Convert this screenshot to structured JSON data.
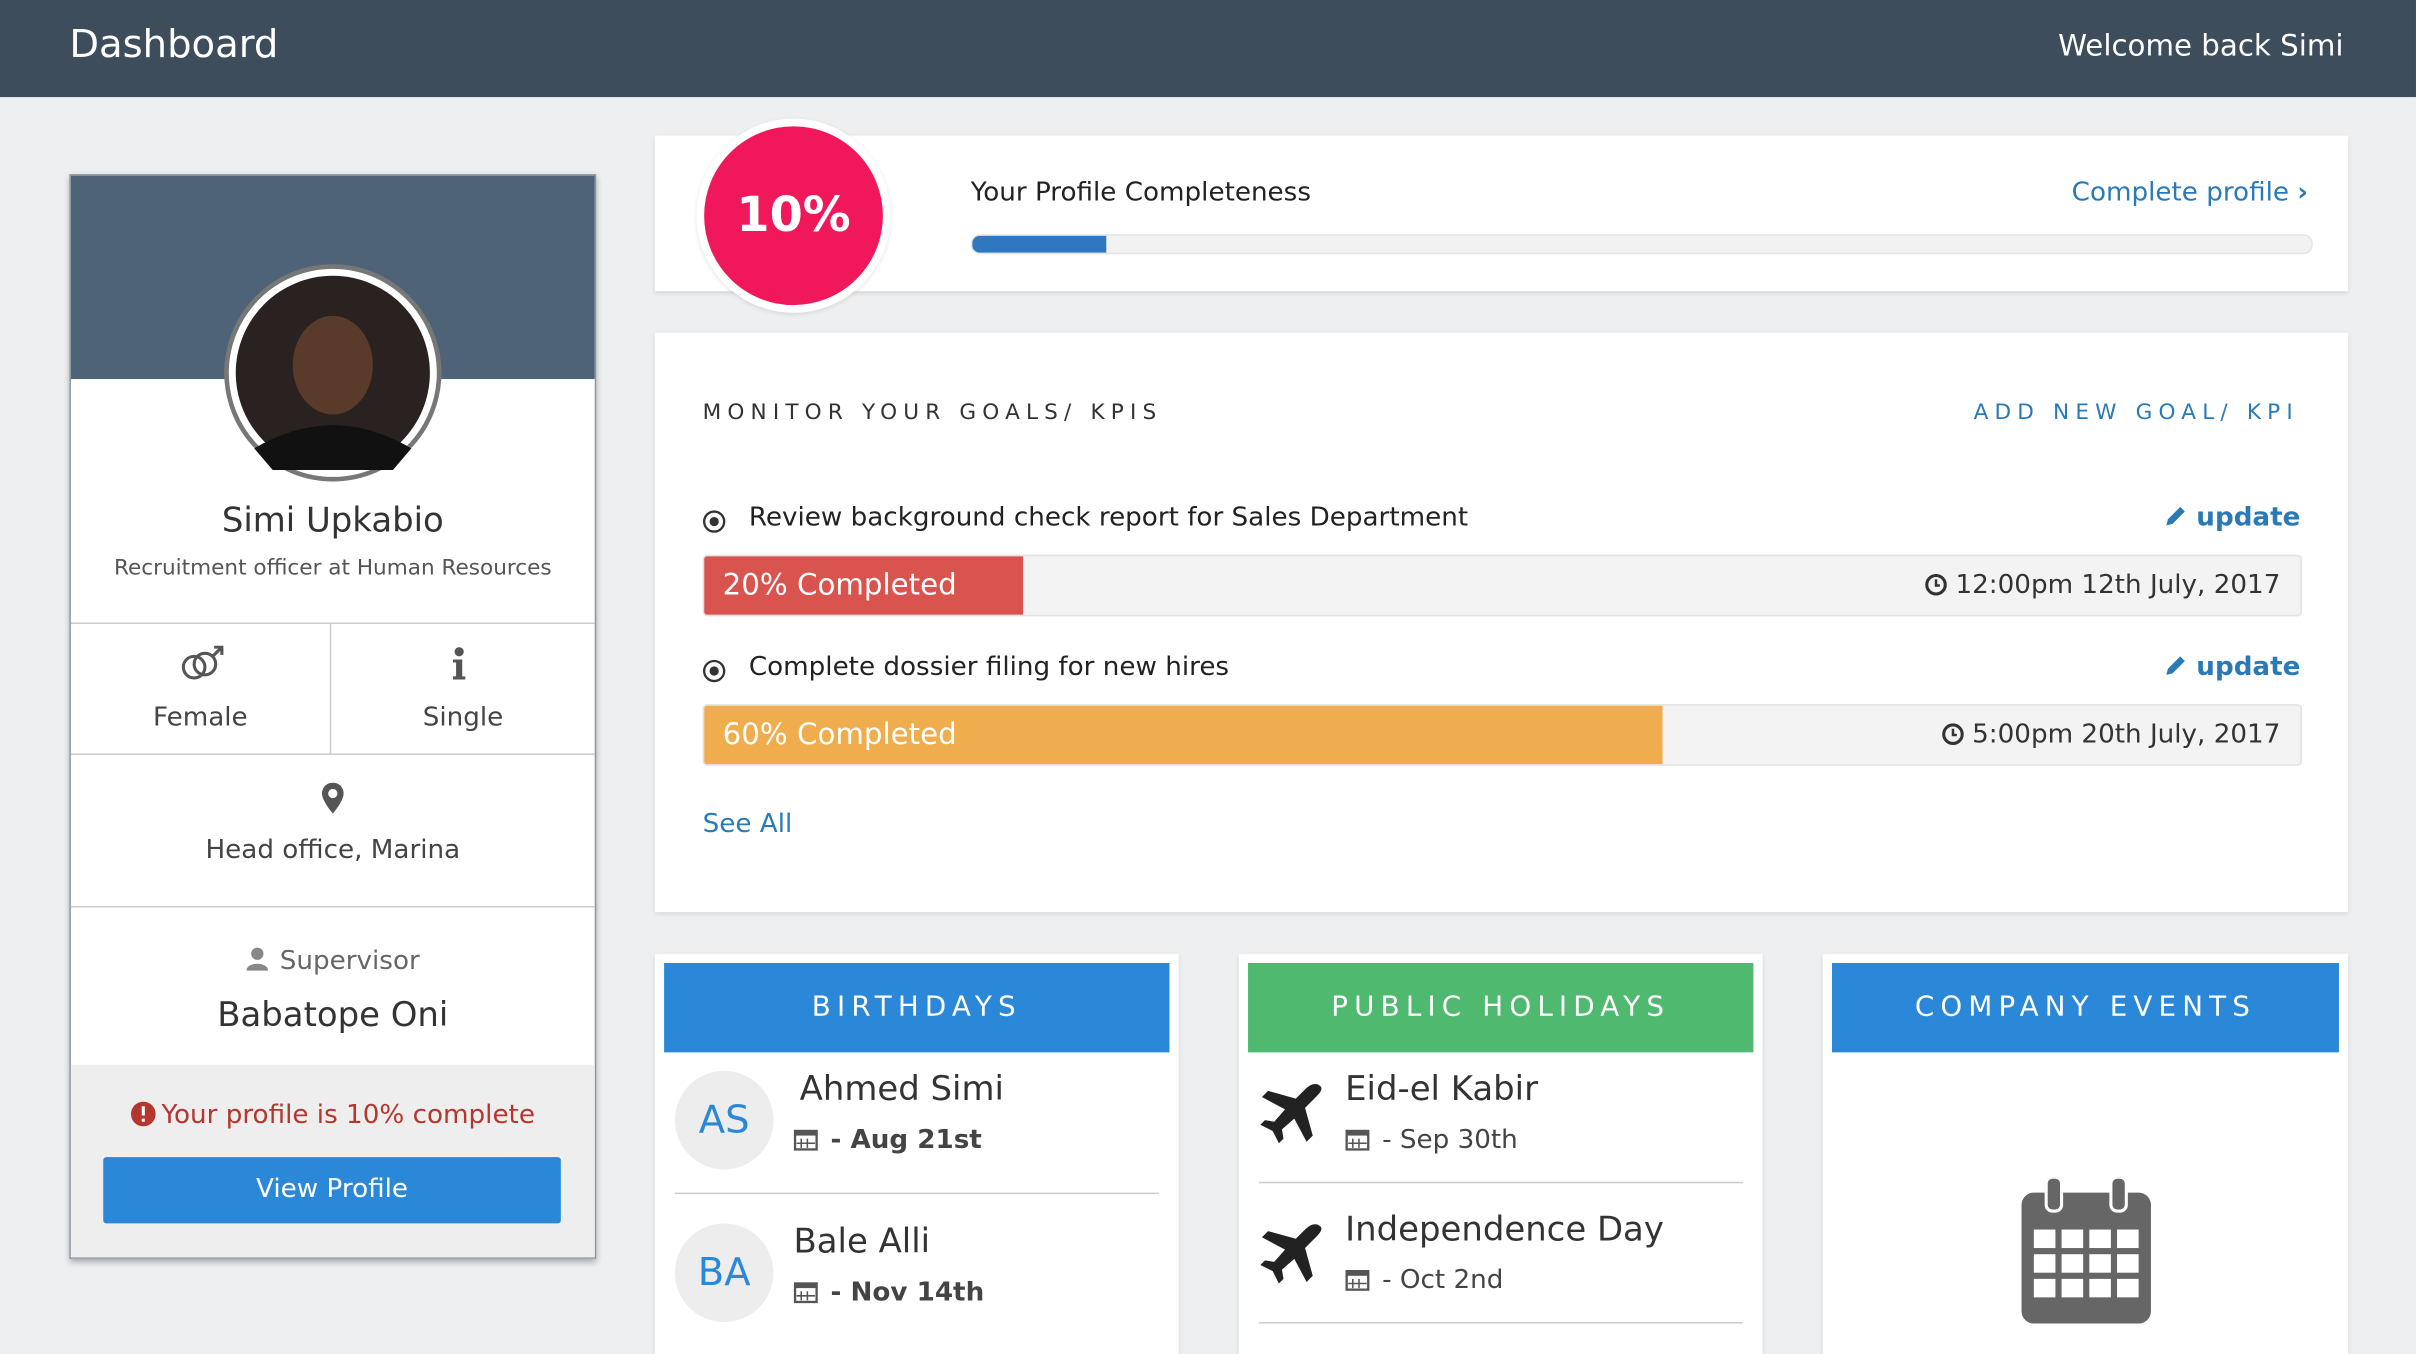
{
  "header": {
    "title": "Dashboard",
    "welcome": "Welcome back Simi"
  },
  "profile": {
    "name": "Simi Upkabio",
    "role": "Recruitment officer at Human Resources",
    "gender": "Female",
    "status": "Single",
    "location": "Head office, Marina",
    "supervisor_label": "Supervisor",
    "supervisor": "Babatope Oni",
    "note": "Your profile is 10% complete",
    "button": "View Profile"
  },
  "completeness": {
    "percent": 10,
    "percent_label": "10%",
    "title": "Your Profile Completeness",
    "link": "Complete profile"
  },
  "goals": {
    "title": "MONITOR YOUR GOALS/ KPIS",
    "add_link": "ADD NEW GOAL/ KPI",
    "items": [
      {
        "title": "Review background check report for Sales Department",
        "update": "update",
        "progress": 20,
        "progress_label": "20% Completed",
        "deadline": "12:00pm 12th July, 2017"
      },
      {
        "title": "Complete dossier filing for new hires",
        "update": "update",
        "progress": 60,
        "progress_label": "60% Completed",
        "deadline": "5:00pm 20th July, 2017"
      }
    ],
    "see_all": "See All"
  },
  "birthdays": {
    "title": "BIRTHDAYS",
    "items": [
      {
        "initials": "AS",
        "name": "Ahmed Simi",
        "date": "- Aug 21st"
      },
      {
        "initials": "BA",
        "name": "Bale Alli",
        "date": "- Nov 14th"
      }
    ]
  },
  "holidays": {
    "title": "PUBLIC HOLIDAYS",
    "items": [
      {
        "name": "Eid-el Kabir",
        "date": "- Sep 30th"
      },
      {
        "name": "Independence Day",
        "date": "- Oct 2nd"
      }
    ]
  },
  "events": {
    "title": "COMPANY EVENTS"
  }
}
